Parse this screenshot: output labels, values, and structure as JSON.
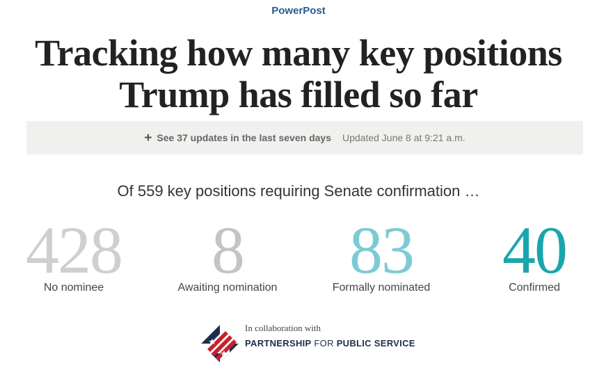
{
  "header": {
    "kicker": "PowerPost",
    "headline_line1": "Tracking how many key positions",
    "headline_line2": "Trump has filled so far"
  },
  "updates": {
    "icon": "plus-icon",
    "toggle_label": "See 37 updates in the last seven days",
    "updated_text": "Updated June 8 at 9:21 a.m."
  },
  "intro": "Of 559 key positions requiring Senate confirmation …",
  "stats": [
    {
      "value": "428",
      "label": "No nominee",
      "color": "#cfcfcf"
    },
    {
      "value": "8",
      "label": "Awaiting nomination",
      "color": "#c4c4c4"
    },
    {
      "value": "83",
      "label": "Formally nominated",
      "color": "#7ccbd4"
    },
    {
      "value": "40",
      "label": "Confirmed",
      "color": "#1aa5ad"
    }
  ],
  "collaboration": {
    "intro": "In collaboration with",
    "partner_part1": "PARTNERSHIP",
    "partner_part2": " FOR ",
    "partner_part3": "PUBLIC SERVICE",
    "logo_icon": "flag-diamond-icon",
    "logo_colors": {
      "navy": "#1f2d4d",
      "red": "#c8202f",
      "white": "#ffffff"
    }
  }
}
